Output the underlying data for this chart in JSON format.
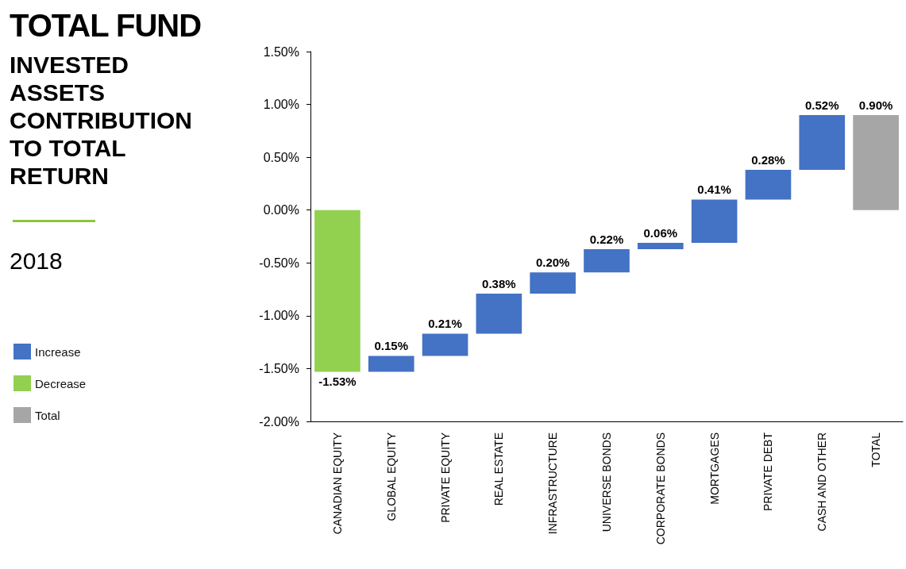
{
  "chart_data": {
    "type": "bar",
    "title": "TOTAL FUND",
    "subtitle": "INVESTED ASSETS CONTRIBUTION TO TOTAL RETURN",
    "annotations": [
      "2018"
    ],
    "categories": [
      "CANADIAN EQUITY",
      "GLOBAL EQUITY",
      "PRIVATE EQUITY",
      "REAL ESTATE",
      "INFRASTRUCTURE",
      "UNIVERSE BONDS",
      "CORPORATE BONDS",
      "MORTGAGES",
      "PRIVATE DEBT",
      "CASH AND OTHER",
      "TOTAL"
    ],
    "series": [
      {
        "name": "Increase",
        "color": "#4472c4",
        "values": [
          null,
          0.15,
          0.21,
          0.38,
          0.2,
          0.22,
          0.06,
          0.41,
          0.28,
          0.52,
          null
        ],
        "base": [
          null,
          -1.53,
          -1.38,
          -1.17,
          -0.79,
          -0.59,
          -0.37,
          -0.31,
          0.1,
          0.38,
          null
        ],
        "value_labels": [
          null,
          "0.15%",
          "0.21%",
          "0.38%",
          "0.20%",
          "0.22%",
          "0.06%",
          "0.41%",
          "0.28%",
          "0.52%",
          null
        ]
      },
      {
        "name": "Decrease",
        "color": "#92d050",
        "values": [
          -1.53,
          null,
          null,
          null,
          null,
          null,
          null,
          null,
          null,
          null,
          null
        ],
        "base": [
          0,
          null,
          null,
          null,
          null,
          null,
          null,
          null,
          null,
          null,
          null
        ],
        "value_labels": [
          "-1.53%",
          null,
          null,
          null,
          null,
          null,
          null,
          null,
          null,
          null,
          null
        ]
      },
      {
        "name": "Total",
        "color": "#a6a6a6",
        "values": [
          null,
          null,
          null,
          null,
          null,
          null,
          null,
          null,
          null,
          null,
          0.9
        ],
        "base": [
          null,
          null,
          null,
          null,
          null,
          null,
          null,
          null,
          null,
          null,
          0
        ],
        "value_labels": [
          null,
          null,
          null,
          null,
          null,
          null,
          null,
          null,
          null,
          null,
          "0.90%"
        ]
      }
    ],
    "ylim": [
      -2,
      1.5
    ],
    "yticks": [
      {
        "value": -2,
        "label": "-2.00%"
      },
      {
        "value": -1.5,
        "label": "-1.50%"
      },
      {
        "value": -1,
        "label": "-1.00%"
      },
      {
        "value": -0.5,
        "label": "-0.50%"
      },
      {
        "value": 0,
        "label": "0.00%"
      },
      {
        "value": 0.5,
        "label": "0.50%"
      },
      {
        "value": 1,
        "label": "1.00%"
      },
      {
        "value": 1.5,
        "label": "1.50%"
      }
    ],
    "legend": "left",
    "grid": false
  }
}
